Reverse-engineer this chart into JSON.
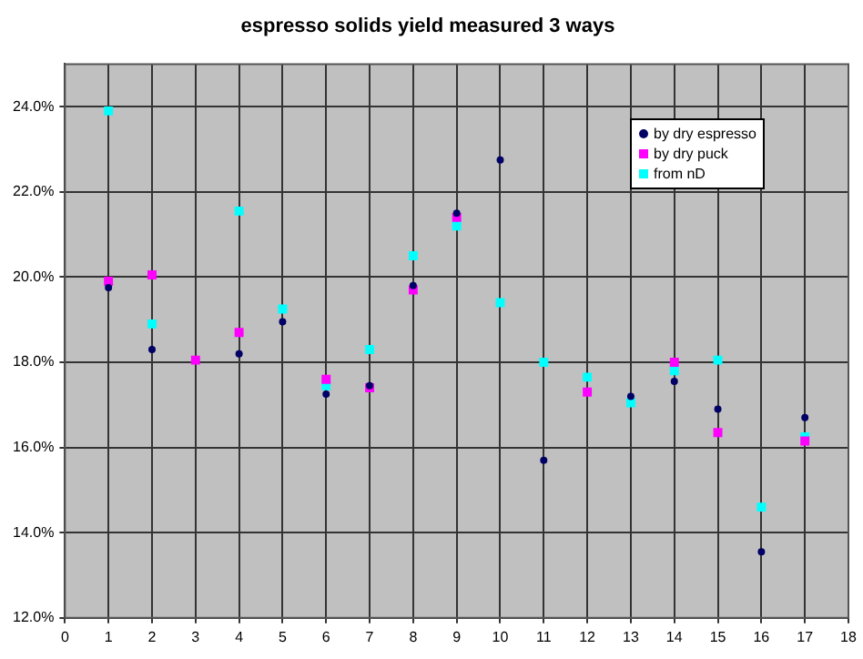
{
  "chart_data": {
    "type": "scatter",
    "title": "espresso solids yield measured 3 ways",
    "x": [
      1,
      2,
      3,
      4,
      5,
      6,
      7,
      8,
      9,
      10,
      11,
      12,
      13,
      14,
      15,
      16,
      17
    ],
    "series": [
      {
        "name": "by dry espresso",
        "color": "#000066",
        "marker": "circle",
        "values": [
          19.75,
          18.3,
          null,
          18.2,
          18.95,
          17.25,
          17.45,
          19.8,
          21.5,
          22.75,
          15.7,
          null,
          17.2,
          17.55,
          16.9,
          13.55,
          16.7
        ]
      },
      {
        "name": "by dry puck",
        "color": "#ff00ff",
        "marker": "square",
        "values": [
          19.9,
          20.05,
          18.05,
          18.7,
          null,
          17.6,
          17.4,
          19.7,
          21.4,
          null,
          null,
          17.3,
          null,
          18.0,
          16.35,
          null,
          16.15
        ]
      },
      {
        "name": "from nD",
        "color": "#00ffff",
        "marker": "square",
        "values": [
          23.9,
          18.9,
          null,
          21.55,
          19.25,
          17.45,
          18.3,
          20.5,
          21.2,
          19.4,
          18.0,
          17.65,
          17.05,
          17.8,
          18.05,
          14.6,
          16.25
        ]
      }
    ],
    "xlim": [
      0,
      18
    ],
    "xticks": [
      0,
      1,
      2,
      3,
      4,
      5,
      6,
      7,
      8,
      9,
      10,
      11,
      12,
      13,
      14,
      15,
      16,
      17,
      18
    ],
    "ylim": [
      12,
      25
    ],
    "yticks": [
      {
        "value": 12,
        "label": "12.0%"
      },
      {
        "value": 14,
        "label": "14.0%"
      },
      {
        "value": 16,
        "label": "16.0%"
      },
      {
        "value": 18,
        "label": "18.0%"
      },
      {
        "value": 20,
        "label": "20.0%"
      },
      {
        "value": 22,
        "label": "22.0%"
      },
      {
        "value": 24,
        "label": "24.0%"
      }
    ],
    "grid": true,
    "legend": "top right"
  }
}
